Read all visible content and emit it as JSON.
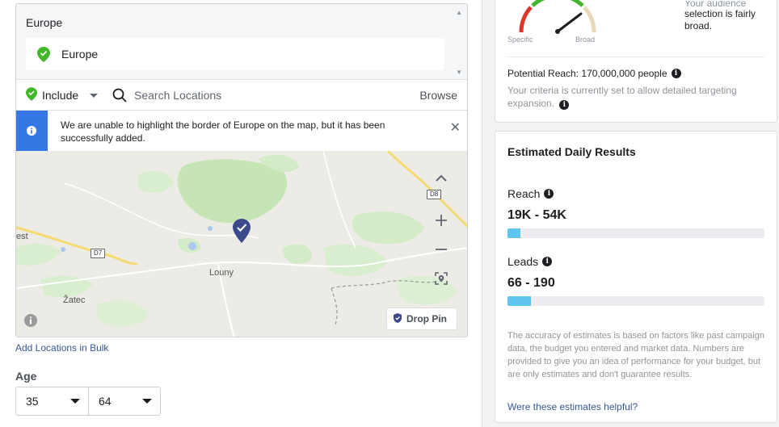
{
  "location": {
    "region_header": "Europe",
    "selected_region": "Europe",
    "include_label": "Include",
    "search_placeholder": "Search Locations",
    "browse_label": "Browse",
    "notice_text": "We are unable to highlight the border of Europe on the map, but it has been successfully added.",
    "map": {
      "place_labels": [
        "Louny",
        "Žatec",
        "est"
      ],
      "road_labels": [
        "D7",
        "D8"
      ],
      "drop_pin_label": "Drop Pin"
    },
    "add_bulk_label": "Add Locations in Bulk"
  },
  "age": {
    "label": "Age",
    "min": "35",
    "max": "64"
  },
  "audience": {
    "gauge_left_label": "Specific",
    "gauge_right_label": "Broad",
    "summary_partial": "Your audience",
    "summary_text": "selection is fairly broad.",
    "potential_reach": "Potential Reach: 170,000,000 people",
    "criteria_note": "Your criteria is currently set to allow detailed targeting expansion."
  },
  "results": {
    "title": "Estimated Daily Results",
    "reach_label": "Reach",
    "reach_value": "19K - 54K",
    "reach_fill_fraction": 0.05,
    "leads_label": "Leads",
    "leads_value": "66 - 190",
    "leads_fill_fraction": 0.09,
    "disclaimer": "The accuracy of estimates is based on factors like past campaign data, the budget you entered and market data. Numbers are provided to give you an idea of performance for your budget, but are only estimates and don't guarantee results.",
    "helpful_link": "Were these estimates helpful?"
  },
  "colors": {
    "include_green": "#42b72a",
    "info_blue": "#3578e5",
    "pin_navy": "#3b4a8a",
    "bar_fill": "#5fc4ee",
    "link_blue": "#385898"
  },
  "icons": [
    "check-pin-icon",
    "search-icon",
    "info-icon",
    "close-icon",
    "chevron-up-icon",
    "zoom-in-icon",
    "zoom-out-icon",
    "locate-icon",
    "map-marker-icon",
    "caret-down-icon"
  ]
}
